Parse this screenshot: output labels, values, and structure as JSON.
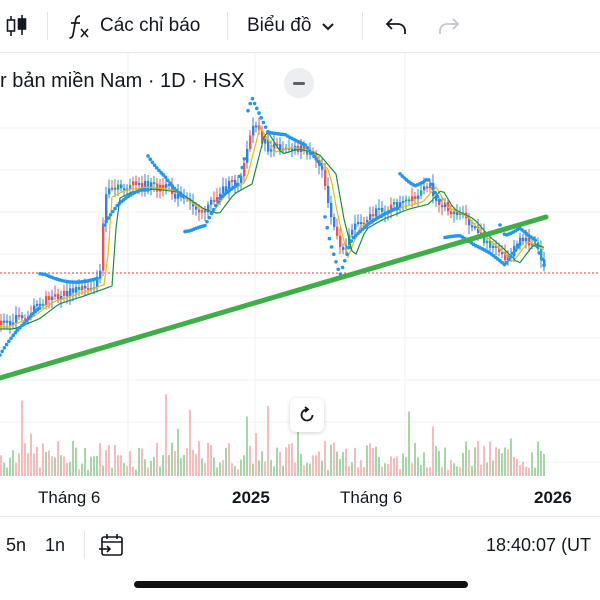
{
  "toolbar": {
    "indicators_label": "Các chỉ báo",
    "chart_type_label": "Biểu đồ"
  },
  "legend": {
    "symbol_title": "r bản miền Nam · 1D · HSX"
  },
  "x_axis": {
    "labels": [
      "Tháng 6",
      "2025",
      "Tháng 6",
      "2026"
    ]
  },
  "bottombar": {
    "range_5y": "5n",
    "range_1y": "1n",
    "clock": "18:40:07 (UT"
  },
  "colors": {
    "up": "#26a69a",
    "down": "#ef5350",
    "candle_blue": "#2f80ed",
    "sar_dots": "#2196f3",
    "trendline": "#3fae49",
    "price_line": "#e53935",
    "volume_up": "#a5d6a7",
    "volume_down": "#f8bbbb"
  },
  "icons": {
    "candles": "candlestick-icon",
    "fx": "function-icon",
    "dropdown": "chevron-down-icon",
    "undo": "undo-icon",
    "redo": "redo-icon",
    "collapse": "minus-icon",
    "reset": "rotate-reset-icon",
    "goto": "calendar-goto-icon"
  }
}
